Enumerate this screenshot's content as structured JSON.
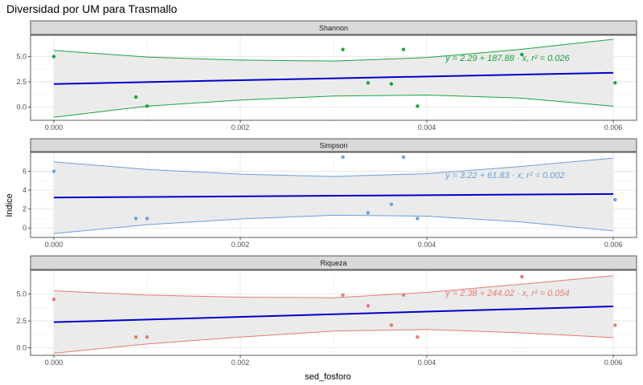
{
  "chart_data": {
    "type": "scatter",
    "title": "Diversidad por UM para Trasmallo",
    "xlabel": "sed_fosforo",
    "ylabel": "Indice",
    "xlim": [
      -0.00025,
      0.00625
    ],
    "x_ticks": [
      "0.000",
      "0.002",
      "0.004",
      "0.006"
    ],
    "x_tick_values": [
      0,
      0.002,
      0.004,
      0.006
    ],
    "grid": true,
    "legend": "none",
    "fit_color": "#0000cc",
    "band_color": "#ebebeb",
    "panels": [
      {
        "name": "Shannon",
        "color": "#1aa33b",
        "ylim": [
          -1.3,
          7.1
        ],
        "y_ticks": [
          "0.0",
          "2.5",
          "5.0"
        ],
        "y_tick_values": [
          0,
          2.5,
          5
        ],
        "points": [
          [
            0.0,
            5.0
          ],
          [
            0.00088,
            1.0
          ],
          [
            0.001,
            0.1
          ],
          [
            0.0031,
            5.7
          ],
          [
            0.00337,
            2.4
          ],
          [
            0.00375,
            5.7
          ],
          [
            0.00362,
            2.3
          ],
          [
            0.0039,
            0.1
          ],
          [
            0.00502,
            5.2
          ],
          [
            0.00602,
            2.4
          ]
        ],
        "fit": [
          2.29,
          3.4
        ],
        "upper": [
          [
            0.0,
            5.6
          ],
          [
            0.001,
            4.95
          ],
          [
            0.002,
            4.65
          ],
          [
            0.003,
            4.55
          ],
          [
            0.004,
            4.9
          ],
          [
            0.005,
            5.7
          ],
          [
            0.006,
            6.7
          ]
        ],
        "lower": [
          [
            0.0,
            -1.0
          ],
          [
            0.001,
            0.1
          ],
          [
            0.002,
            0.7
          ],
          [
            0.003,
            1.1
          ],
          [
            0.004,
            1.2
          ],
          [
            0.005,
            0.9
          ],
          [
            0.006,
            0.1
          ]
        ],
        "equation": "y = 2.29 + 187.88 · x, r² = 0.026"
      },
      {
        "name": "Simpson",
        "color": "#6a9fdd",
        "ylim": [
          -1.0,
          8.0
        ],
        "y_ticks": [
          "0",
          "2",
          "4",
          "6"
        ],
        "y_tick_values": [
          0,
          2,
          4,
          6
        ],
        "points": [
          [
            0.0,
            6.0
          ],
          [
            0.00088,
            1.0
          ],
          [
            0.001,
            1.0
          ],
          [
            0.0031,
            7.5
          ],
          [
            0.00337,
            1.6
          ],
          [
            0.00375,
            7.5
          ],
          [
            0.00362,
            2.5
          ],
          [
            0.0039,
            1.0
          ],
          [
            0.00602,
            3.0
          ]
        ],
        "fit": [
          3.22,
          3.6
        ],
        "upper": [
          [
            0.0,
            7.0
          ],
          [
            0.001,
            6.2
          ],
          [
            0.002,
            5.7
          ],
          [
            0.003,
            5.45
          ],
          [
            0.004,
            5.75
          ],
          [
            0.005,
            6.5
          ],
          [
            0.006,
            7.4
          ]
        ],
        "lower": [
          [
            0.0,
            -0.6
          ],
          [
            0.001,
            0.35
          ],
          [
            0.002,
            0.95
          ],
          [
            0.003,
            1.35
          ],
          [
            0.004,
            1.25
          ],
          [
            0.005,
            0.65
          ],
          [
            0.006,
            -0.3
          ]
        ],
        "equation": "y = 3.22 + 61.83 · x, r² = 0.002"
      },
      {
        "name": "Riqueza",
        "color": "#e47b73",
        "ylim": [
          -0.7,
          7.2
        ],
        "y_ticks": [
          "0.0",
          "2.5",
          "5.0"
        ],
        "y_tick_values": [
          0,
          2.5,
          5
        ],
        "points": [
          [
            0.0,
            4.5
          ],
          [
            0.00088,
            1.0
          ],
          [
            0.001,
            1.0
          ],
          [
            0.0031,
            4.9
          ],
          [
            0.00337,
            3.9
          ],
          [
            0.00375,
            4.9
          ],
          [
            0.00362,
            2.1
          ],
          [
            0.0039,
            1.0
          ],
          [
            0.00502,
            6.6
          ],
          [
            0.00602,
            2.1
          ]
        ],
        "fit": [
          2.38,
          3.85
        ],
        "upper": [
          [
            0.0,
            5.3
          ],
          [
            0.001,
            4.9
          ],
          [
            0.002,
            4.7
          ],
          [
            0.003,
            4.65
          ],
          [
            0.004,
            5.15
          ],
          [
            0.005,
            5.9
          ],
          [
            0.006,
            6.7
          ]
        ],
        "lower": [
          [
            0.0,
            -0.5
          ],
          [
            0.001,
            0.35
          ],
          [
            0.002,
            1.0
          ],
          [
            0.003,
            1.55
          ],
          [
            0.004,
            1.7
          ],
          [
            0.005,
            1.4
          ],
          [
            0.006,
            0.95
          ]
        ],
        "equation": "y = 2.38 + 244.02 · x, r² = 0.054"
      }
    ]
  }
}
